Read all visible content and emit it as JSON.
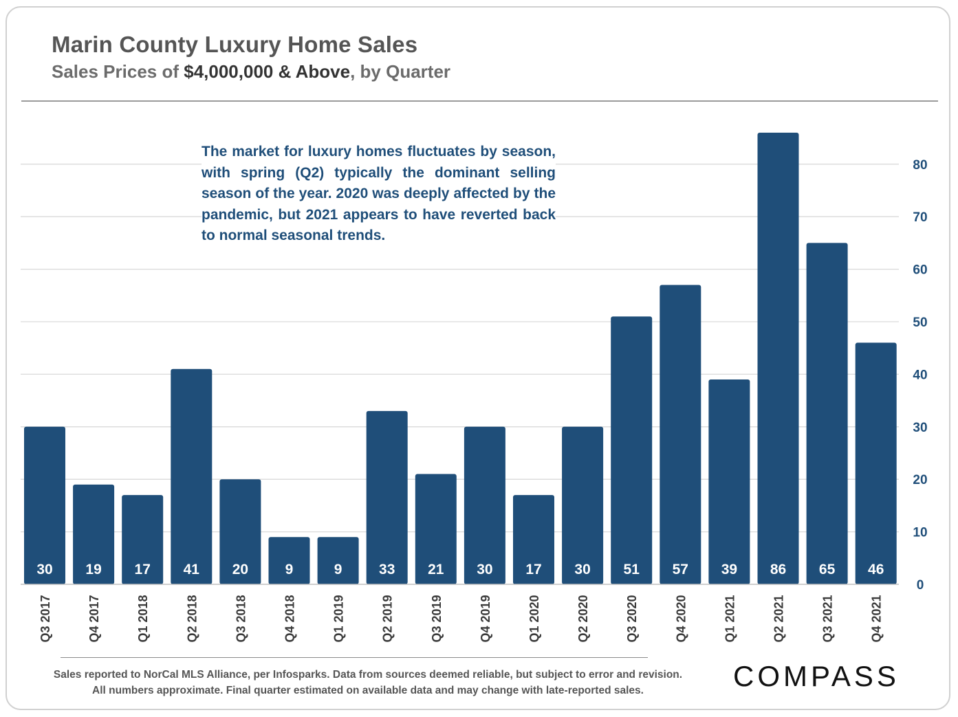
{
  "header": {
    "title": "Marin County Luxury Home Sales",
    "subtitle_pre": "Sales Prices of ",
    "subtitle_em": "$4,000,000 & Above",
    "subtitle_post": ", by Quarter"
  },
  "annotation": "The market for luxury homes fluctuates by season, with spring (Q2) typically the dominant selling season of the year. 2020 was deeply affected by the pandemic, but 2021 appears to have reverted back to normal seasonal trends.",
  "footnote": {
    "line1": "Sales reported to NorCal MLS Alliance, per Infosparks. Data from sources deemed reliable, but subject to error and revision.",
    "line2": "All numbers approximate. Final quarter estimated on available data and may change with late-reported sales."
  },
  "logo": {
    "text": "COMPASS"
  },
  "colors": {
    "bar": "#1f4e79",
    "bar_label": "#ffffff",
    "axis_text": "#1f4e79",
    "grid": "#d9d9d9",
    "category_text": "#3a3a3a"
  },
  "chart_data": {
    "type": "bar",
    "categories": [
      "Q3 2017",
      "Q4 2017",
      "Q1 2018",
      "Q2 2018",
      "Q3 2018",
      "Q4 2018",
      "Q1 2019",
      "Q2 2019",
      "Q3 2019",
      "Q4 2019",
      "Q1 2020",
      "Q2 2020",
      "Q3 2020",
      "Q4 2020",
      "Q1 2021",
      "Q2 2021",
      "Q3 2021",
      "Q4 2021"
    ],
    "values": [
      30,
      19,
      17,
      41,
      20,
      9,
      9,
      33,
      21,
      30,
      17,
      30,
      51,
      57,
      39,
      86,
      65,
      46
    ],
    "data_labels": true,
    "y_axis_position": "right",
    "y_ticks": [
      0,
      10,
      20,
      30,
      40,
      50,
      60,
      70,
      80
    ],
    "ylim": [
      0,
      86
    ],
    "grid": true,
    "legend": "none"
  }
}
